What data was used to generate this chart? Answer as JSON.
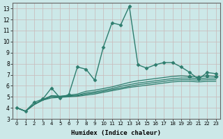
{
  "title": "",
  "xlabel": "Humidex (Indice chaleur)",
  "bg_color": "#cce8e8",
  "grid_color": "#c8dada",
  "line_color": "#2e7d6e",
  "xlim": [
    -0.5,
    23.5
  ],
  "ylim": [
    3,
    13.5
  ],
  "yticks": [
    3,
    4,
    5,
    6,
    7,
    8,
    9,
    10,
    11,
    12,
    13
  ],
  "xticks": [
    0,
    1,
    2,
    3,
    4,
    5,
    6,
    7,
    8,
    9,
    10,
    11,
    12,
    13,
    14,
    15,
    16,
    17,
    18,
    19,
    20,
    21,
    22,
    23
  ],
  "lines": [
    {
      "x": [
        0,
        1,
        2,
        3,
        4,
        5,
        6,
        7,
        8,
        9,
        10,
        11,
        12,
        13,
        14,
        15,
        16,
        17,
        18,
        19,
        20,
        21,
        22,
        23
      ],
      "y": [
        4.0,
        3.7,
        4.5,
        4.8,
        5.8,
        4.9,
        5.2,
        7.7,
        7.5,
        6.5,
        9.5,
        11.7,
        11.5,
        13.2,
        7.9,
        7.6,
        7.9,
        8.1,
        8.1,
        7.7,
        7.2,
        6.6,
        7.2,
        7.1
      ],
      "marker": "D",
      "markersize": 2.5,
      "linewidth": 1.0,
      "has_markers": true
    },
    {
      "x": [
        0,
        1,
        2,
        3,
        4,
        5,
        6,
        7,
        8,
        9,
        10,
        11,
        12,
        13,
        14,
        15,
        16,
        17,
        18,
        19,
        20,
        21,
        22,
        23
      ],
      "y": [
        4.0,
        3.7,
        4.3,
        4.7,
        4.9,
        4.95,
        5.0,
        5.05,
        5.15,
        5.25,
        5.4,
        5.55,
        5.7,
        5.85,
        5.95,
        6.05,
        6.15,
        6.25,
        6.35,
        6.4,
        6.4,
        6.35,
        6.4,
        6.4
      ],
      "marker": null,
      "markersize": 0,
      "linewidth": 0.9,
      "has_markers": false
    },
    {
      "x": [
        0,
        1,
        2,
        3,
        4,
        5,
        6,
        7,
        8,
        9,
        10,
        11,
        12,
        13,
        14,
        15,
        16,
        17,
        18,
        19,
        20,
        21,
        22,
        23
      ],
      "y": [
        4.0,
        3.7,
        4.3,
        4.7,
        5.0,
        5.0,
        5.05,
        5.1,
        5.25,
        5.35,
        5.5,
        5.65,
        5.8,
        5.95,
        6.1,
        6.2,
        6.3,
        6.4,
        6.5,
        6.55,
        6.55,
        6.5,
        6.55,
        6.55
      ],
      "marker": null,
      "markersize": 0,
      "linewidth": 0.9,
      "has_markers": false
    },
    {
      "x": [
        0,
        1,
        2,
        3,
        4,
        5,
        6,
        7,
        8,
        9,
        10,
        11,
        12,
        13,
        14,
        15,
        16,
        17,
        18,
        19,
        20,
        21,
        22,
        23
      ],
      "y": [
        4.0,
        3.7,
        4.3,
        4.75,
        5.1,
        5.05,
        5.1,
        5.15,
        5.35,
        5.45,
        5.6,
        5.75,
        5.95,
        6.1,
        6.25,
        6.35,
        6.45,
        6.55,
        6.65,
        6.7,
        6.7,
        6.65,
        6.7,
        6.7
      ],
      "marker": null,
      "markersize": 0,
      "linewidth": 0.9,
      "has_markers": false
    },
    {
      "x": [
        0,
        1,
        2,
        3,
        4,
        5,
        6,
        7,
        8,
        9,
        10,
        11,
        12,
        13,
        14,
        15,
        16,
        17,
        18,
        19,
        20,
        21,
        22,
        23
      ],
      "y": [
        4.0,
        3.7,
        4.3,
        4.75,
        5.1,
        5.05,
        5.15,
        5.25,
        5.5,
        5.6,
        5.75,
        5.9,
        6.1,
        6.3,
        6.45,
        6.55,
        6.65,
        6.75,
        6.85,
        6.9,
        6.85,
        6.8,
        6.9,
        6.85
      ],
      "marker": "D",
      "markersize": 2.5,
      "linewidth": 0.9,
      "has_markers": false,
      "markers_at": [
        20,
        21,
        22,
        23
      ]
    }
  ]
}
